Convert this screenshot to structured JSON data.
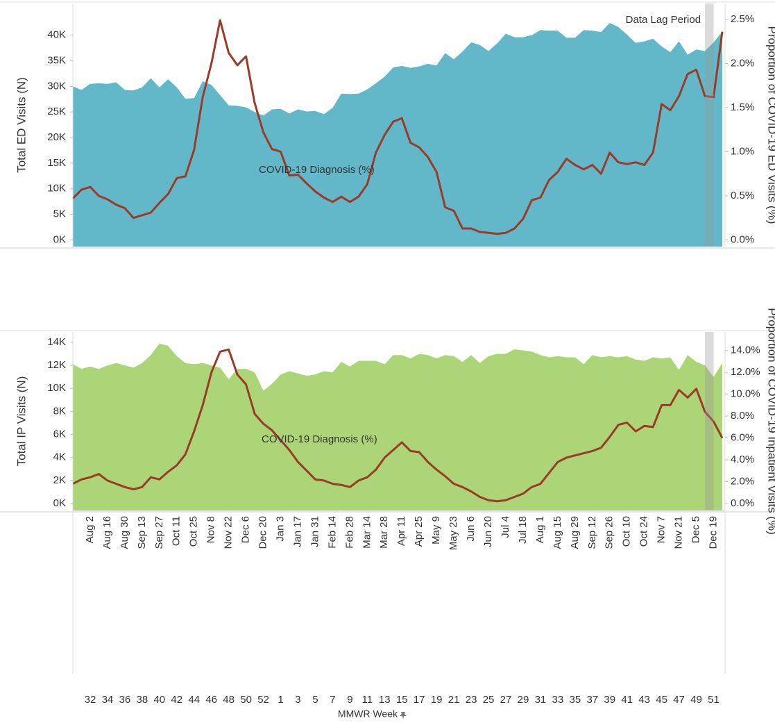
{
  "chart_data": [
    {
      "type": "area",
      "ylabel": "Total ED Visits (N)",
      "y2label": "Proportion of COVID-19 ED Visits (%)",
      "annotation": "Data Lag Period",
      "ylim": [
        -1300,
        46200
      ],
      "y2lim": [
        -0.075,
        2.68
      ],
      "yticks": [
        {
          "value": 0,
          "label": "0K"
        },
        {
          "value": 5000,
          "label": "5K"
        },
        {
          "value": 10000,
          "label": "10K"
        },
        {
          "value": 15000,
          "label": "15K"
        },
        {
          "value": 20000,
          "label": "20K"
        },
        {
          "value": 25000,
          "label": "25K"
        },
        {
          "value": 30000,
          "label": "30K"
        },
        {
          "value": 35000,
          "label": "35K"
        },
        {
          "value": 40000,
          "label": "40K"
        }
      ],
      "y2ticks": [
        {
          "value": 0,
          "label": "0.0%"
        },
        {
          "value": 0.5,
          "label": "0.5%"
        },
        {
          "value": 1,
          "label": "1.0%"
        },
        {
          "value": 1.5,
          "label": "1.5%"
        },
        {
          "value": 2,
          "label": "2.0%"
        },
        {
          "value": 2.5,
          "label": "2.5%"
        }
      ],
      "series": [
        {
          "mark": "area",
          "color": "#62b8c9",
          "values": [
            30000,
            29300,
            30500,
            30600,
            30500,
            30800,
            29300,
            29200,
            29800,
            31600,
            29800,
            31400,
            29800,
            27600,
            27700,
            31000,
            30300,
            28300,
            26300,
            26200,
            25900,
            25000,
            24300,
            25500,
            25600,
            24700,
            25500,
            25100,
            25200,
            24600,
            25800,
            28600,
            28500,
            28600,
            29400,
            30600,
            31900,
            33700,
            34000,
            33600,
            33900,
            34400,
            34100,
            36500,
            35300,
            36800,
            38600,
            38100,
            36900,
            38400,
            40300,
            39600,
            39600,
            40000,
            41000,
            40900,
            40900,
            39500,
            39500,
            41000,
            40900,
            40600,
            42400,
            41600,
            40100,
            38500,
            38800,
            39300,
            37800,
            36700,
            38800,
            36200,
            37200,
            36900,
            38600,
            40700
          ]
        },
        {
          "mark": "line",
          "name": "COVID-19 Diagnosis (%)",
          "axis": "y2",
          "color": "#9b3a26",
          "values": [
            0.47,
            0.57,
            0.6,
            0.5,
            0.46,
            0.4,
            0.36,
            0.25,
            0.28,
            0.31,
            0.42,
            0.52,
            0.7,
            0.72,
            1.02,
            1.62,
            2.0,
            2.49,
            2.12,
            1.98,
            2.08,
            1.55,
            1.22,
            1.03,
            1.0,
            0.73,
            0.74,
            0.64,
            0.55,
            0.48,
            0.43,
            0.49,
            0.43,
            0.49,
            0.63,
            0.99,
            1.19,
            1.34,
            1.38,
            1.1,
            1.05,
            0.94,
            0.77,
            0.37,
            0.33,
            0.13,
            0.13,
            0.09,
            0.08,
            0.07,
            0.08,
            0.13,
            0.24,
            0.45,
            0.48,
            0.68,
            0.77,
            0.92,
            0.85,
            0.8,
            0.85,
            0.75,
            0.99,
            0.88,
            0.86,
            0.88,
            0.85,
            0.99,
            1.54,
            1.47,
            1.63,
            1.88,
            1.93,
            1.63,
            1.62,
            2.36
          ]
        }
      ]
    },
    {
      "type": "area",
      "ylabel": "Total IP Visits (N)",
      "y2label": "Proportion of COVID-19 Inpatient Visits (%)",
      "xlabel": "MMWR Week",
      "categories": [
        null,
        null,
        "Aug 2",
        null,
        "Aug 16",
        null,
        "Aug 30",
        null,
        "Sep 13",
        null,
        "Sep 27",
        null,
        "Oct 11",
        null,
        "Oct 25",
        null,
        "Nov 8",
        null,
        "Nov 22",
        null,
        "Dec 6",
        null,
        "Dec 20",
        null,
        "Jan 3",
        null,
        "Jan 17",
        null,
        "Jan 31",
        null,
        "Feb 14",
        null,
        "Feb 28",
        null,
        "Mar 14",
        null,
        "Mar 28",
        null,
        "Apr 11",
        null,
        "Apr 25",
        null,
        "May 9",
        null,
        "May 23",
        null,
        "Jun 6",
        null,
        "Jun 20",
        null,
        "Jul 4",
        null,
        "Jul 18",
        null,
        "Aug 1",
        null,
        "Aug 15",
        null,
        "Aug 29",
        null,
        "Sep 12",
        null,
        "Sep 26",
        null,
        "Oct 10",
        null,
        "Oct 24",
        null,
        "Nov 7",
        null,
        "Nov 21",
        null,
        "Dec 5",
        null,
        "Dec 19",
        null
      ],
      "week_numbers": [
        null,
        null,
        "32",
        null,
        "34",
        null,
        "36",
        null,
        "38",
        null,
        "40",
        null,
        "42",
        null,
        "44",
        null,
        "46",
        null,
        "48",
        null,
        "50",
        null,
        "52",
        null,
        "1",
        null,
        "3",
        null,
        "5",
        null,
        "7",
        null,
        "9",
        null,
        "11",
        null,
        "13",
        null,
        "15",
        null,
        "17",
        null,
        "19",
        null,
        "21",
        null,
        "23",
        null,
        "25",
        null,
        "27",
        null,
        "29",
        null,
        "31",
        null,
        "33",
        null,
        "35",
        null,
        "37",
        null,
        "39",
        null,
        "41",
        null,
        "43",
        null,
        "45",
        null,
        "47",
        null,
        "49",
        null,
        "51",
        null
      ],
      "ylim": [
        -600,
        14900
      ],
      "y2lim": [
        -0.64,
        15.7
      ],
      "yticks": [
        {
          "value": 0,
          "label": "0K"
        },
        {
          "value": 2000,
          "label": "2K"
        },
        {
          "value": 4000,
          "label": "4K"
        },
        {
          "value": 6000,
          "label": "6K"
        },
        {
          "value": 8000,
          "label": "8K"
        },
        {
          "value": 10000,
          "label": "10K"
        },
        {
          "value": 12000,
          "label": "12K"
        },
        {
          "value": 14000,
          "label": "14K"
        }
      ],
      "y2ticks": [
        {
          "value": 0,
          "label": "0.0%"
        },
        {
          "value": 2,
          "label": "2.0%"
        },
        {
          "value": 4,
          "label": "4.0%"
        },
        {
          "value": 6,
          "label": "6.0%"
        },
        {
          "value": 8,
          "label": "8.0%"
        },
        {
          "value": 10,
          "label": "10.0%"
        },
        {
          "value": 12,
          "label": "12.0%"
        },
        {
          "value": 14,
          "label": "14.0%"
        }
      ],
      "series": [
        {
          "mark": "area",
          "color": "#acd578",
          "values": [
            12100,
            11700,
            11900,
            11700,
            12000,
            12200,
            12000,
            11800,
            12200,
            12900,
            13900,
            13700,
            12800,
            12200,
            12100,
            12200,
            12000,
            11800,
            10800,
            11700,
            11700,
            11400,
            9800,
            10400,
            11200,
            11500,
            11300,
            11100,
            11200,
            11500,
            11400,
            12300,
            11900,
            12400,
            12400,
            12400,
            12100,
            12900,
            12900,
            12600,
            13000,
            12900,
            12600,
            12900,
            12800,
            12300,
            12900,
            12200,
            12800,
            13000,
            13000,
            13400,
            13300,
            13200,
            12900,
            12700,
            12800,
            12700,
            12700,
            12100,
            12900,
            12700,
            12800,
            12700,
            12800,
            12500,
            12400,
            12700,
            12600,
            12700,
            11600,
            12900,
            12300,
            12000,
            11000,
            12200
          ]
        },
        {
          "mark": "line",
          "name": "COVID-19 Diagnosis (%)",
          "axis": "y2",
          "color": "#9b3a26",
          "values": [
            1.8,
            2.2,
            2.4,
            2.7,
            2.1,
            1.8,
            1.5,
            1.3,
            1.5,
            2.4,
            2.2,
            2.9,
            3.5,
            4.5,
            6.6,
            9.0,
            12.0,
            13.9,
            14.1,
            11.8,
            10.9,
            8.2,
            7.3,
            6.7,
            5.8,
            4.9,
            3.8,
            3.0,
            2.2,
            2.1,
            1.8,
            1.7,
            1.5,
            2.1,
            2.4,
            3.1,
            4.2,
            4.9,
            5.6,
            4.8,
            4.7,
            3.8,
            3.1,
            2.5,
            1.8,
            1.5,
            1.1,
            0.6,
            0.3,
            0.2,
            0.3,
            0.6,
            0.9,
            1.5,
            1.8,
            2.8,
            3.8,
            4.2,
            4.4,
            4.6,
            4.8,
            5.1,
            6.1,
            7.2,
            7.4,
            6.6,
            7.1,
            7.0,
            9.0,
            9.0,
            10.4,
            9.7,
            10.5,
            8.4,
            7.5,
            6.0
          ]
        }
      ]
    }
  ]
}
